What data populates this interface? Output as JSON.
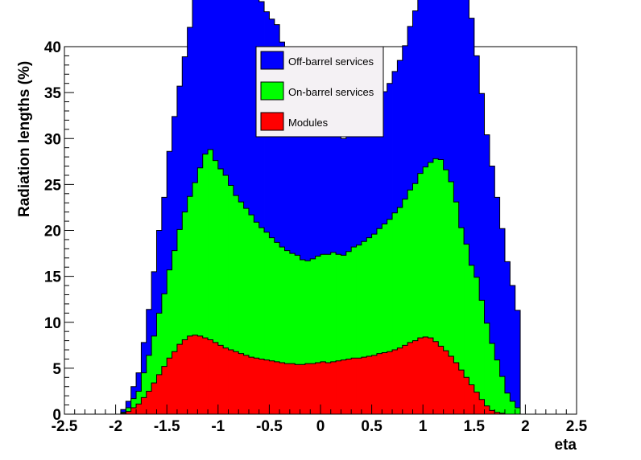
{
  "chart_data": {
    "type": "area",
    "stacked": true,
    "histogram": true,
    "xlabel": "eta",
    "ylabel": "Radiation lengths (%)",
    "xlim": [
      -2.5,
      2.5
    ],
    "ylim": [
      0,
      40
    ],
    "x_ticks": [
      -2.5,
      -2,
      -1.5,
      -1,
      -0.5,
      0,
      0.5,
      1,
      1.5,
      2,
      2.5
    ],
    "y_ticks": [
      0,
      5,
      10,
      15,
      20,
      25,
      30,
      35,
      40
    ],
    "x_tick_labels": [
      "-2.5",
      "-2",
      "-1.5",
      "-1",
      "-0.5",
      "0",
      "0.5",
      "1",
      "1.5",
      "2",
      "2.5"
    ],
    "y_tick_labels": [
      "0",
      "5",
      "10",
      "15",
      "20",
      "25",
      "30",
      "35",
      "40"
    ],
    "grid": false,
    "legend_position": "top-center",
    "bin_edges": [
      -1.95,
      -1.9,
      -1.85,
      -1.8,
      -1.75,
      -1.7,
      -1.65,
      -1.6,
      -1.55,
      -1.5,
      -1.45,
      -1.4,
      -1.35,
      -1.3,
      -1.25,
      -1.2,
      -1.15,
      -1.1,
      -1.05,
      -1.0,
      -0.95,
      -0.9,
      -0.85,
      -0.8,
      -0.75,
      -0.7,
      -0.65,
      -0.6,
      -0.55,
      -0.5,
      -0.45,
      -0.4,
      -0.35,
      -0.3,
      -0.25,
      -0.2,
      -0.15,
      -0.1,
      -0.05,
      0.0,
      0.05,
      0.1,
      0.15,
      0.2,
      0.25,
      0.3,
      0.35,
      0.4,
      0.45,
      0.5,
      0.55,
      0.6,
      0.65,
      0.7,
      0.75,
      0.8,
      0.85,
      0.9,
      0.95,
      1.0,
      1.05,
      1.1,
      1.15,
      1.2,
      1.25,
      1.3,
      1.35,
      1.4,
      1.45,
      1.5,
      1.55,
      1.6,
      1.65,
      1.7,
      1.75,
      1.8,
      1.85,
      1.9,
      1.95
    ],
    "series": [
      {
        "name": "Modules",
        "color": "#ff0000",
        "values": [
          0.1,
          0.3,
          0.7,
          1.1,
          1.8,
          2.5,
          3.4,
          4.3,
          5.2,
          6.1,
          6.8,
          7.6,
          8.1,
          8.5,
          8.6,
          8.5,
          8.3,
          8.1,
          7.8,
          7.5,
          7.2,
          7.0,
          6.8,
          6.6,
          6.4,
          6.2,
          6.1,
          6.0,
          5.9,
          5.8,
          5.7,
          5.6,
          5.5,
          5.5,
          5.4,
          5.4,
          5.5,
          5.5,
          5.6,
          5.7,
          5.6,
          5.7,
          5.8,
          5.9,
          6.0,
          6.1,
          6.1,
          6.2,
          6.3,
          6.4,
          6.6,
          6.7,
          6.8,
          7.0,
          7.2,
          7.5,
          7.8,
          8.0,
          8.3,
          8.4,
          8.3,
          7.9,
          7.4,
          6.9,
          6.3,
          5.6,
          4.8,
          4.0,
          3.2,
          2.4,
          1.6,
          0.9,
          0.4,
          0.2,
          0.1,
          0.0,
          0.0,
          0.0
        ]
      },
      {
        "name": "On-barrel services",
        "color": "#00ff00",
        "values": [
          0.1,
          0.4,
          1.0,
          1.4,
          2.7,
          3.9,
          5.1,
          6.7,
          7.9,
          9.6,
          11.0,
          12.5,
          13.9,
          15.2,
          16.6,
          18.3,
          20.0,
          20.7,
          19.8,
          19.2,
          18.8,
          17.9,
          17.0,
          16.5,
          16.0,
          15.5,
          14.8,
          14.3,
          13.9,
          13.4,
          13.0,
          12.6,
          12.3,
          12.0,
          11.9,
          11.4,
          11.2,
          11.4,
          11.6,
          11.7,
          11.8,
          11.9,
          11.6,
          11.4,
          11.7,
          12.1,
          12.3,
          12.6,
          12.9,
          13.2,
          13.6,
          14.0,
          14.4,
          14.9,
          15.3,
          15.9,
          16.6,
          17.1,
          17.9,
          18.5,
          19.1,
          19.9,
          20.3,
          19.7,
          19.0,
          17.5,
          15.5,
          14.5,
          13.0,
          12.5,
          10.8,
          9.0,
          7.3,
          5.7,
          4.0,
          2.3,
          1.4,
          0.7
        ]
      },
      {
        "name": "Off-barrel services",
        "color": "#0000ff",
        "values": [
          0.3,
          0.7,
          1.3,
          2.0,
          3.3,
          5.0,
          7.0,
          9.0,
          10.5,
          12.9,
          14.6,
          15.6,
          16.9,
          18.4,
          20.1,
          21.6,
          23.6,
          24.1,
          25.6,
          27.3,
          28.4,
          28.7,
          29.3,
          29.0,
          28.0,
          27.0,
          25.7,
          24.6,
          24.0,
          23.8,
          23.7,
          22.3,
          21.0,
          18.8,
          17.4,
          16.0,
          15.3,
          14.9,
          14.4,
          13.9,
          13.6,
          13.2,
          12.9,
          12.7,
          12.7,
          12.9,
          13.1,
          13.4,
          13.4,
          13.6,
          14.0,
          14.4,
          14.8,
          15.4,
          16.0,
          16.7,
          17.8,
          18.8,
          24.6,
          23.0,
          24.0,
          26.5,
          27.9,
          28.6,
          29.5,
          30.4,
          30.7,
          28.4,
          26.9,
          24.1,
          22.5,
          20.5,
          19.3,
          17.7,
          16.1,
          14.3,
          12.6,
          10.6
        ]
      }
    ]
  }
}
